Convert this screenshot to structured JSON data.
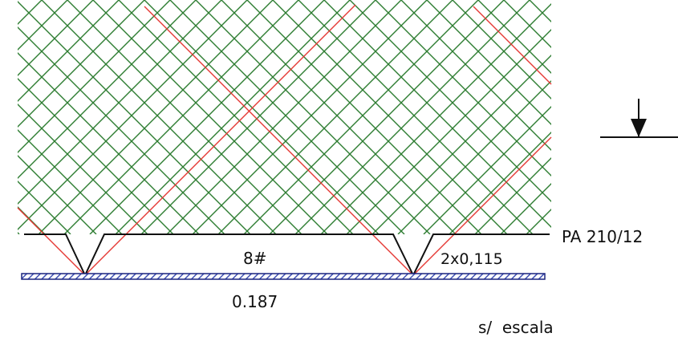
{
  "labels": {
    "profile": "PA 210/12",
    "mesh": "8#",
    "wire": "2x0,115",
    "spacing": "0.187",
    "scale_note": "s/  escala"
  },
  "colors": {
    "mesh": "#2e7d32",
    "highlight": "#e53935",
    "outline": "#111111",
    "base_fill": "#3f51b5",
    "base_edge": "#1a237e",
    "background": "#ffffff"
  }
}
